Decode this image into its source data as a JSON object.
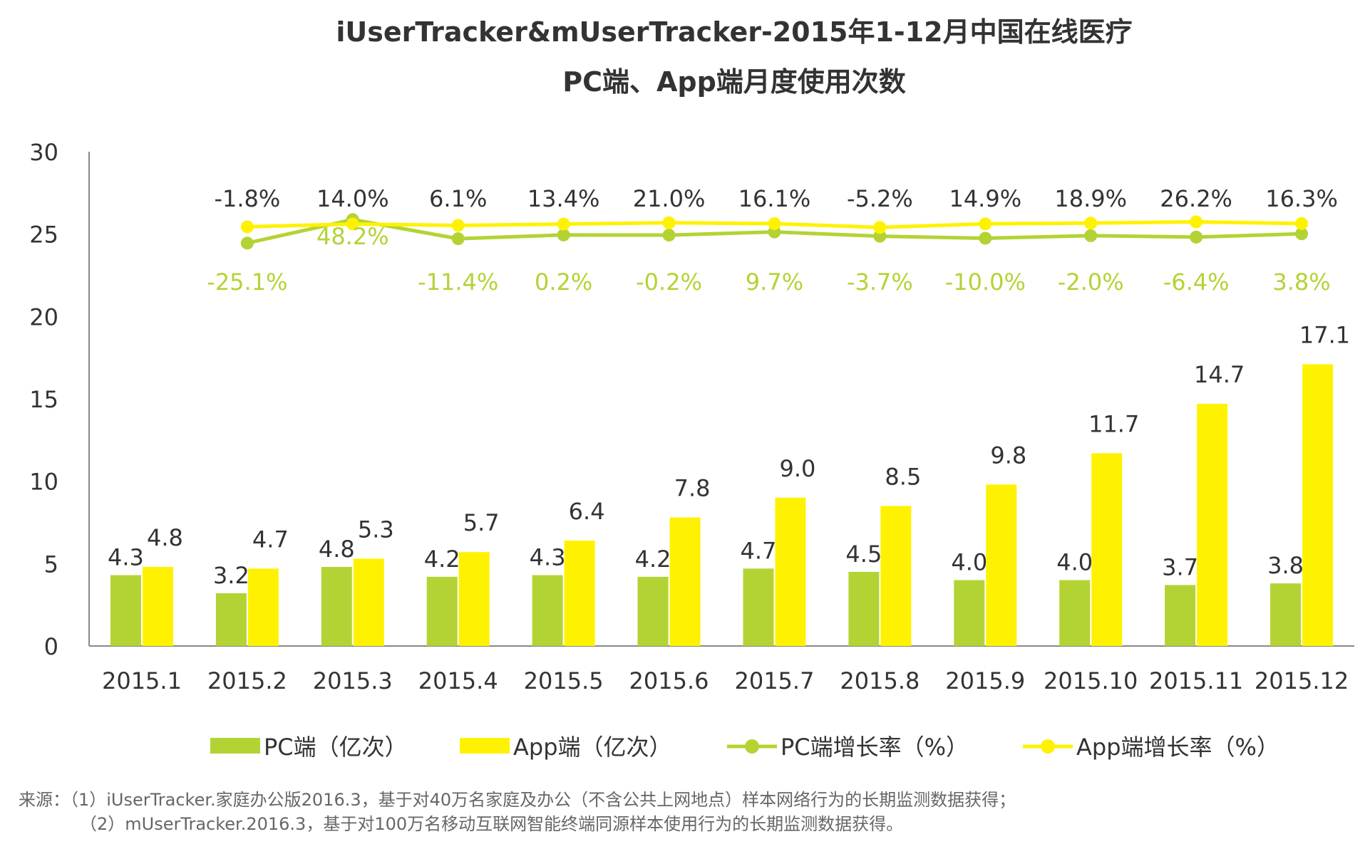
{
  "chart_data": {
    "type": "bar",
    "title_line1": "iUserTracker&mUserTracker-2015年1-12月中国在线医疗",
    "title_line2": "PC端、App端月度使用次数",
    "categories": [
      "2015.1",
      "2015.2",
      "2015.3",
      "2015.4",
      "2015.5",
      "2015.6",
      "2015.7",
      "2015.8",
      "2015.9",
      "2015.10",
      "2015.11",
      "2015.12"
    ],
    "ylim": [
      0,
      30
    ],
    "yticks": [
      "0",
      "5",
      "10",
      "15",
      "20",
      "25",
      "30"
    ],
    "series": [
      {
        "name": "PC端（亿次）",
        "kind": "bar",
        "color": "#b3d335",
        "values": [
          4.3,
          3.2,
          4.8,
          4.2,
          4.3,
          4.2,
          4.7,
          4.5,
          4.0,
          4.0,
          3.7,
          3.8
        ],
        "labels": [
          "4.3",
          "3.2",
          "4.8",
          "4.2",
          "4.3",
          "4.2",
          "4.7",
          "4.5",
          "4.0",
          "4.0",
          "3.7",
          "3.8"
        ]
      },
      {
        "name": "App端（亿次）",
        "kind": "bar",
        "color": "#fff200",
        "values": [
          4.8,
          4.7,
          5.3,
          5.7,
          6.4,
          7.8,
          9.0,
          8.5,
          9.8,
          11.7,
          14.7,
          17.1
        ],
        "labels": [
          "4.8",
          "4.7",
          "5.3",
          "5.7",
          "6.4",
          "7.8",
          "9.0",
          "8.5",
          "9.8",
          "11.7",
          "14.7",
          "17.1"
        ]
      },
      {
        "name": "PC端增长率（%）",
        "kind": "line",
        "color": "#b3d335",
        "labels": [
          "",
          "-25.1%",
          "48.2%",
          "-11.4%",
          "0.2%",
          "-0.2%",
          "9.7%",
          "-3.7%",
          "-10.0%",
          "-2.0%",
          "-6.4%",
          "3.8%"
        ]
      },
      {
        "name": "App端增长率（%）",
        "kind": "line",
        "color": "#fff200",
        "labels": [
          "",
          "-1.8%",
          "14.0%",
          "6.1%",
          "13.4%",
          "21.0%",
          "16.1%",
          "-5.2%",
          "14.9%",
          "18.9%",
          "26.2%",
          "16.3%"
        ]
      }
    ]
  },
  "source": {
    "line1": "来源：（1）iUserTracker.家庭办公版2016.3，基于对40万名家庭及办公（不含公共上网地点）样本网络行为的长期监测数据获得；",
    "line2": "（2）mUserTracker.2016.3，基于对100万名移动互联网智能终端同源样本使用行为的长期监测数据获得。"
  }
}
